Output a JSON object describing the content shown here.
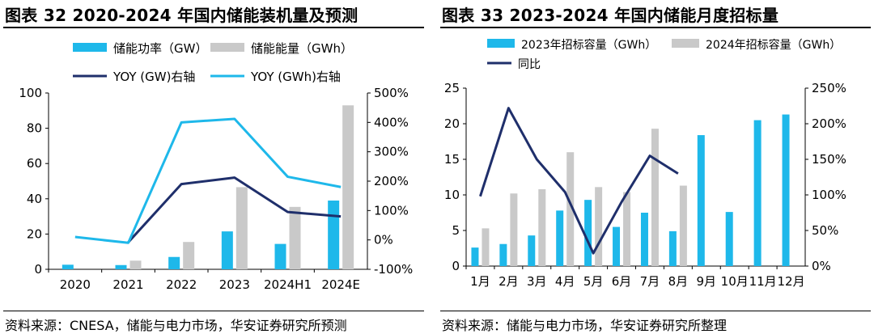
{
  "left": {
    "title": "图表 32 2020-2024 年国内储能装机量及预测",
    "source": "资料来源：CNESA，储能与电力市场，华安证券研究所预测",
    "chart_data": {
      "type": "bar",
      "categories": [
        "2020",
        "2021",
        "2022",
        "2023",
        "2024H1",
        "2024E"
      ],
      "series": [
        {
          "name": "储能功率（GW）",
          "kind": "bar",
          "axis": "left",
          "color": "#1EB8EA",
          "values": [
            2.6,
            2.4,
            7.0,
            21.5,
            14.4,
            39.0
          ]
        },
        {
          "name": "储能能量（GWh）",
          "kind": "bar",
          "axis": "left",
          "color": "#C9C9C9",
          "values": [
            null,
            4.9,
            15.5,
            46.6,
            35.4,
            93.0
          ]
        },
        {
          "name": "YOY (GW)右轴",
          "kind": "line",
          "axis": "right",
          "color": "#1F2F6B",
          "values": [
            null,
            -8,
            190,
            212,
            95,
            80
          ]
        },
        {
          "name": "YOY (GWh)右轴",
          "kind": "line",
          "axis": "right",
          "color": "#1EB8EA",
          "values": [
            10,
            -10,
            400,
            412,
            215,
            180
          ]
        }
      ],
      "ylim": [
        0,
        100
      ],
      "yticks": [
        "0",
        "20",
        "40",
        "60",
        "80",
        "100"
      ],
      "y2lim": [
        -100,
        500
      ],
      "y2ticks": [
        "-100%",
        "0%",
        "100%",
        "200%",
        "300%",
        "400%",
        "500%"
      ],
      "legend": "top",
      "grid": false
    }
  },
  "right": {
    "title": "图表 33 2023-2024 年国内储能月度招标量",
    "source": "资料来源：储能与电力市场，华安证券研究所整理",
    "chart_data": {
      "type": "bar",
      "categories": [
        "1月",
        "2月",
        "3月",
        "4月",
        "5月",
        "6月",
        "7月",
        "8月",
        "9月",
        "10月",
        "11月",
        "12月"
      ],
      "series": [
        {
          "name": "2023年招标容量（GWh）",
          "kind": "bar",
          "axis": "left",
          "color": "#1EB8EA",
          "values": [
            2.6,
            3.1,
            4.3,
            7.8,
            9.3,
            5.5,
            7.5,
            4.9,
            18.4,
            7.6,
            20.5,
            21.3
          ]
        },
        {
          "name": "2024年招标容量（GWh）",
          "kind": "bar",
          "axis": "left",
          "color": "#C9C9C9",
          "values": [
            5.3,
            10.2,
            10.8,
            16.0,
            11.1,
            10.4,
            19.3,
            11.3,
            null,
            null,
            null,
            null
          ]
        },
        {
          "name": "同比",
          "kind": "line",
          "axis": "right",
          "color": "#1F2F6B",
          "values": [
            98,
            222,
            150,
            104,
            18,
            90,
            155,
            130,
            null,
            null,
            null,
            null
          ]
        }
      ],
      "ylim": [
        0,
        25
      ],
      "yticks": [
        "0",
        "5",
        "10",
        "15",
        "20",
        "25"
      ],
      "y2lim": [
        0,
        250
      ],
      "y2ticks": [
        "0%",
        "50%",
        "100%",
        "150%",
        "200%",
        "250%"
      ],
      "legend": "top",
      "grid": false
    }
  }
}
